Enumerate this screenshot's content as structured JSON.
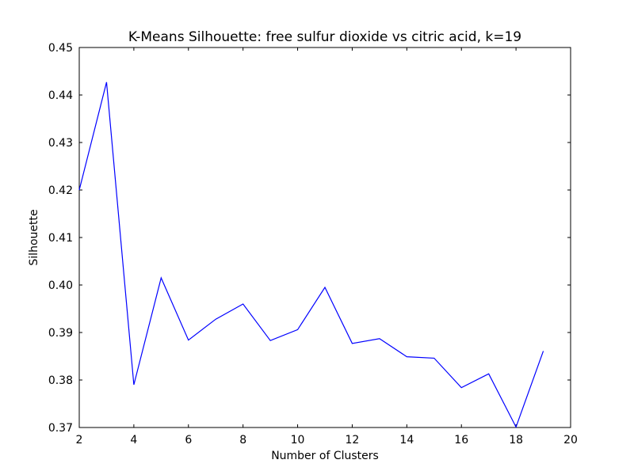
{
  "chart_data": {
    "type": "line",
    "title": "K-Means Silhouette: free sulfur dioxide vs citric acid, k=19",
    "xlabel": "Number of Clusters",
    "ylabel": "Silhouette",
    "xlim": [
      2,
      20
    ],
    "ylim": [
      0.37,
      0.45
    ],
    "xticks": [
      2,
      4,
      6,
      8,
      10,
      12,
      14,
      16,
      18,
      20
    ],
    "xtick_labels": [
      "2",
      "4",
      "6",
      "8",
      "10",
      "12",
      "14",
      "16",
      "18",
      "20"
    ],
    "yticks": [
      0.37,
      0.38,
      0.39,
      0.4,
      0.41,
      0.42,
      0.43,
      0.44,
      0.45
    ],
    "ytick_labels": [
      "0.37",
      "0.38",
      "0.39",
      "0.40",
      "0.41",
      "0.42",
      "0.43",
      "0.44",
      "0.45"
    ],
    "grid": false,
    "line_color": "#0000ff",
    "series": [
      {
        "x": [
          2,
          3,
          4,
          5,
          6,
          7,
          8,
          9,
          10,
          11,
          12,
          13,
          14,
          15,
          16,
          17,
          18,
          19
        ],
        "values": [
          0.42,
          0.4427,
          0.379,
          0.4015,
          0.3884,
          0.3928,
          0.396,
          0.3883,
          0.3906,
          0.3995,
          0.3877,
          0.3887,
          0.3849,
          0.3846,
          0.3784,
          0.3813,
          0.3701,
          0.3861
        ]
      }
    ]
  }
}
